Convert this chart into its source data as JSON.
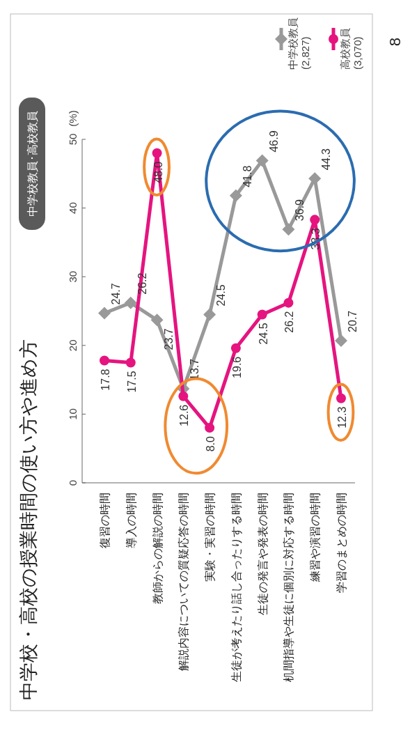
{
  "chart_data": {
    "type": "line",
    "title": "中学校・高校の授業時間の使い方や進め方",
    "subtitle": "中学校教員･高校教員",
    "ylabel": "(%)",
    "categories": [
      "復習の時間",
      "導入の時間",
      "教師からの解説の時間",
      "解説内容についての質疑応答の時間",
      "実験・実習の時間",
      "生徒が考えたり話し合ったりする時間",
      "生徒の発言や発表の時間",
      "机間指導や生徒に個別に対応する時間",
      "練習や演習の時間",
      "学習のまとめの時間"
    ],
    "series": [
      {
        "name": "中学校教員 (2,827)",
        "color": "#999999",
        "marker": "diamond",
        "values": [
          24.7,
          26.2,
          23.7,
          13.7,
          24.5,
          41.8,
          46.9,
          36.9,
          44.3,
          20.7
        ],
        "value_labels": [
          "24.7",
          "26.2",
          "23.7",
          "13.7",
          "24.5",
          "41.8",
          "46.9",
          "36.9",
          "44.3",
          "20.7"
        ]
      },
      {
        "name": "高校教員 (3,070)",
        "color": "#e5147f",
        "marker": "circle",
        "values": [
          17.8,
          17.5,
          48.0,
          12.6,
          8.0,
          19.6,
          24.5,
          26.2,
          38.3,
          12.3
        ],
        "value_labels": [
          "17.8",
          "17.5",
          "48.0",
          "12.6",
          "8.0",
          "19.6",
          "24.5",
          "26.2",
          "38.3",
          "12.3"
        ]
      }
    ],
    "ylim": [
      0,
      50
    ],
    "yticks": [
      0,
      10,
      20,
      30,
      40,
      50
    ],
    "grid": false,
    "legend": "top right",
    "line_style": "solid",
    "annotations": [
      "8"
    ]
  }
}
